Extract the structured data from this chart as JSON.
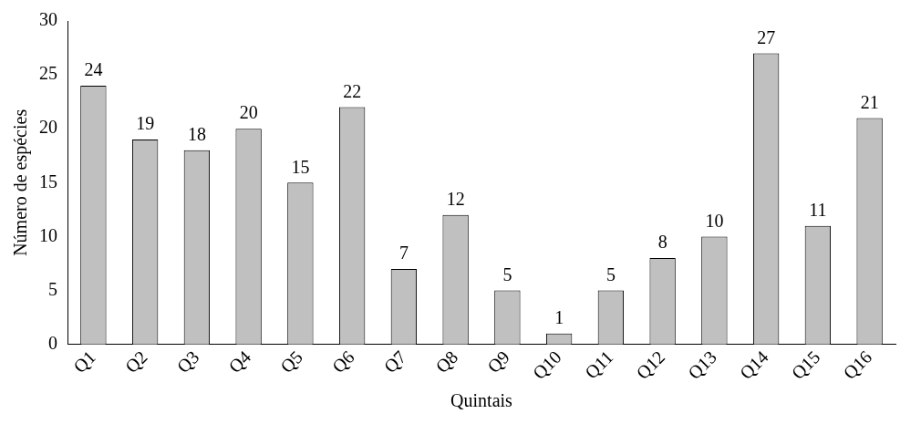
{
  "chart_data": {
    "type": "bar",
    "xlabel": "Quintais",
    "ylabel": "Número de espécies",
    "categories": [
      "Q1",
      "Q2",
      "Q3",
      "Q4",
      "Q5",
      "Q6",
      "Q7",
      "Q8",
      "Q9",
      "Q10",
      "Q11",
      "Q12",
      "Q13",
      "Q14",
      "Q15",
      "Q16"
    ],
    "values": [
      24,
      19,
      18,
      20,
      15,
      22,
      7,
      12,
      5,
      1,
      5,
      8,
      10,
      27,
      11,
      21
    ],
    "color": "#c0c0c0",
    "ylim": [
      0,
      30
    ],
    "yticks": [
      0,
      5,
      10,
      15,
      20,
      25,
      30
    ],
    "grid": false,
    "legend": false,
    "data_labels": true
  }
}
